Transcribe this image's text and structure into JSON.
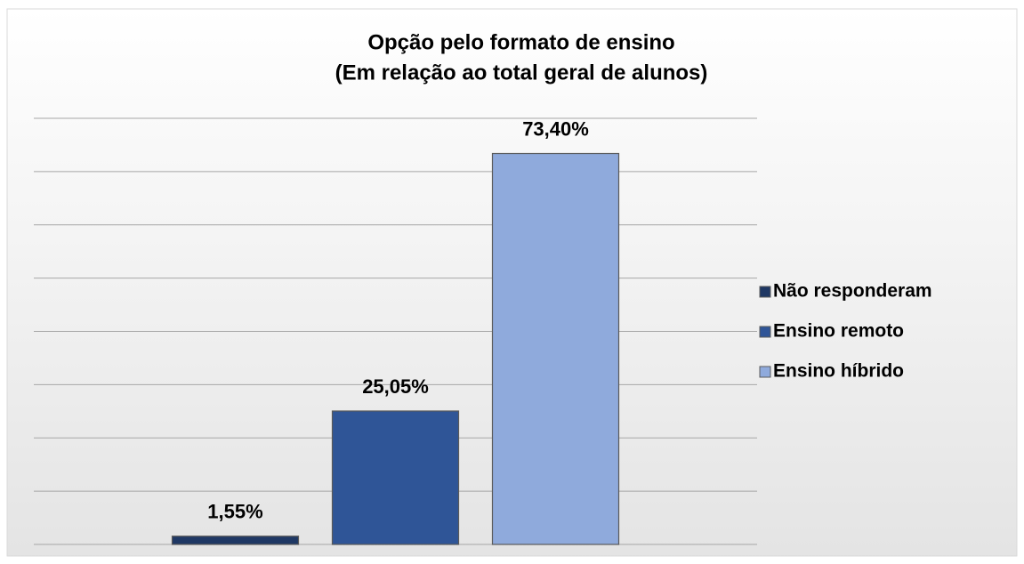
{
  "chart_data": {
    "type": "bar",
    "title": [
      "Opção pelo formato de ensino",
      "(Em relação ao total geral de alunos)"
    ],
    "categories": [
      null
    ],
    "series": [
      {
        "name": "Não responderam",
        "color": "#1f3864",
        "values": [
          1.55
        ],
        "value_labels": [
          "1,55%"
        ]
      },
      {
        "name": "Ensino remoto",
        "color": "#2f5597",
        "values": [
          25.05
        ],
        "value_labels": [
          "25,05%"
        ]
      },
      {
        "name": "Ensino híbrido",
        "color": "#8faadc",
        "values": [
          73.4
        ],
        "value_labels": [
          "73,40%"
        ]
      }
    ],
    "ylim": [
      0,
      80
    ],
    "yticks": [
      0,
      10,
      20,
      30,
      40,
      50,
      60,
      70,
      80
    ],
    "grid": true,
    "legend": "right"
  }
}
